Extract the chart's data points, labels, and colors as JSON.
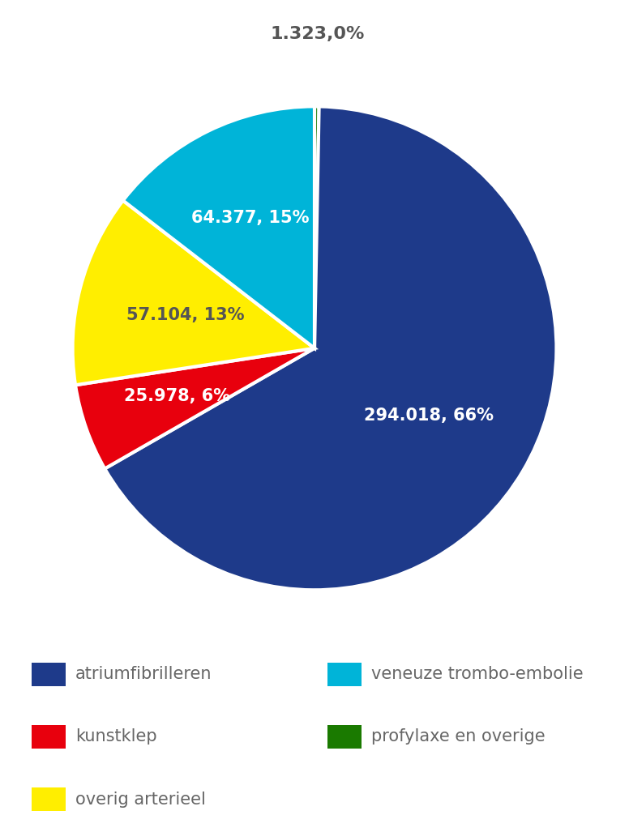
{
  "slices": [
    {
      "label": "atriumfibrilleren",
      "value": 294018,
      "color": "#1e3a8a",
      "text_label": "294.018, 66%",
      "text_color": "#ffffff",
      "text_r": 0.55
    },
    {
      "label": "veneuze trombo-embolie",
      "value": 64377,
      "color": "#00b4d8",
      "text_label": "64.377, 15%",
      "text_color": "#ffffff",
      "text_r": 0.6
    },
    {
      "label": "overig arterieel",
      "value": 57104,
      "color": "#ffee00",
      "text_label": "57.104, 13%",
      "text_color": "#555555",
      "text_r": 0.55
    },
    {
      "label": "kunstklep",
      "value": 25978,
      "color": "#e8000d",
      "text_label": "25.978, 6%",
      "text_color": "#ffffff",
      "text_r": 0.6
    },
    {
      "label": "profylaxe en overige",
      "value": 1323,
      "color": "#1a7a00",
      "text_label": "1.323,0%",
      "text_color": "#555555",
      "text_r": 1.25
    }
  ],
  "pie_order": [
    4,
    0,
    3,
    2,
    1
  ],
  "legend_items": [
    {
      "label": "atriumfibrilleren",
      "color": "#1e3a8a"
    },
    {
      "label": "kunstklep",
      "color": "#e8000d"
    },
    {
      "label": "overig arterieel",
      "color": "#ffee00"
    },
    {
      "label": "veneuze trombo-embolie",
      "color": "#00b4d8"
    },
    {
      "label": "profylaxe en overige",
      "color": "#1a7a00"
    }
  ],
  "background_color": "#ffffff",
  "label_fontsize": 15,
  "legend_fontsize": 15,
  "outside_label_fontsize": 16,
  "startangle": 90
}
